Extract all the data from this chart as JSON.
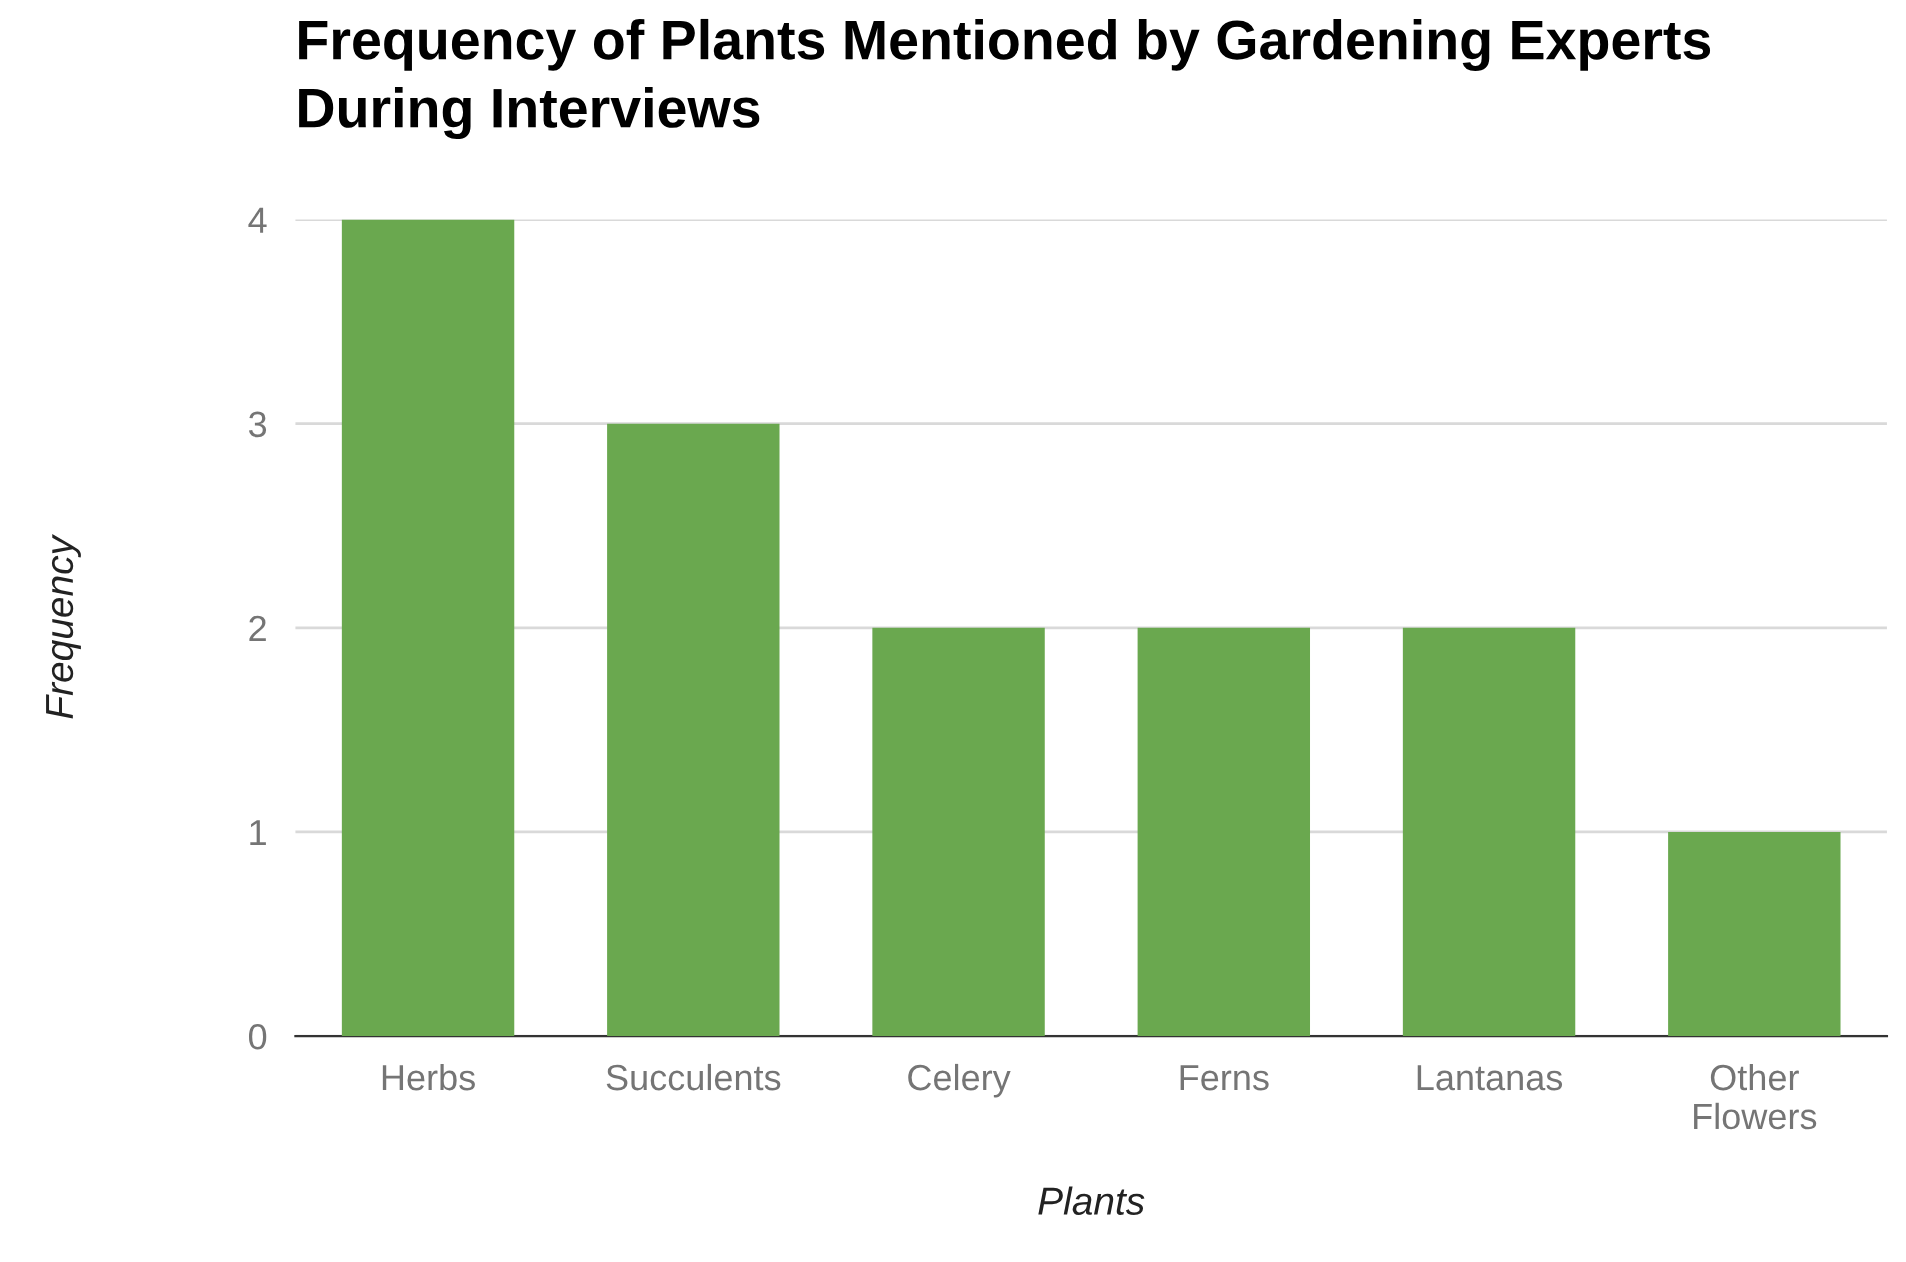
{
  "chart_data": {
    "type": "bar",
    "title": "Frequency of Plants Mentioned by Gardening Experts During Interviews",
    "xlabel": "Plants",
    "ylabel": "Frequency",
    "categories": [
      "Herbs",
      "Succulents",
      "Celery",
      "Ferns",
      "Lantanas",
      "Other Flowers"
    ],
    "values": [
      4,
      3,
      2,
      2,
      2,
      1
    ],
    "color": "#6aa84f",
    "ylim": [
      0,
      4
    ],
    "yticks": [
      0,
      1,
      2,
      3,
      4
    ],
    "grid": "y",
    "legend": false
  }
}
